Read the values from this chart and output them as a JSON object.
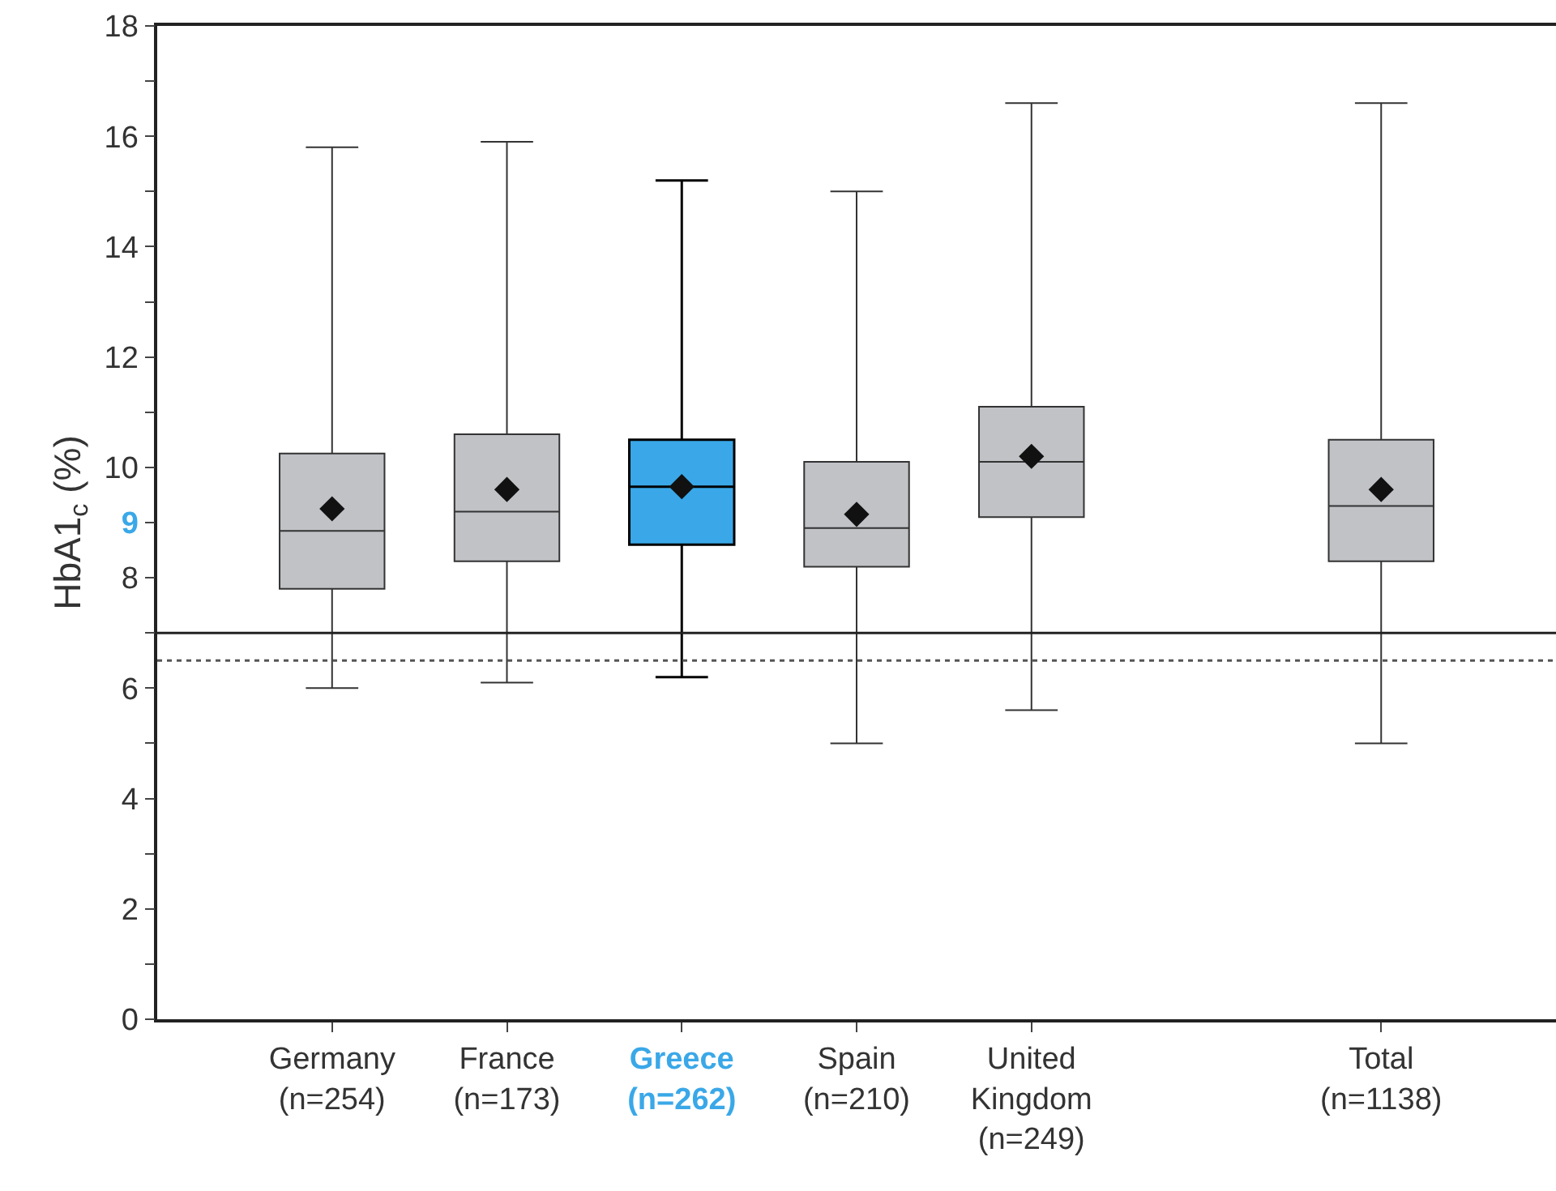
{
  "chart_data": {
    "type": "box",
    "ylabel": "HbA1$_{c}$ (%)",
    "categories": [
      "Germany\n(n=254)",
      "France\n(n=173)",
      "Greece\n(n=262)",
      "Spain\n(n=210)",
      "United\nKingdom\n(n=249)",
      null,
      "Total\n(n=1138)"
    ],
    "color": "#c0c2c6",
    "colors": [
      "#c0c2c6",
      "#c0c2c6",
      "#3aa8e8",
      "#c0c2c6",
      "#c0c2c6",
      null,
      "#c0c2c6"
    ],
    "boxes": [
      {
        "low": 6.0,
        "q1": 7.8,
        "median": 8.85,
        "q3": 10.25,
        "high": 15.8,
        "mean": 9.25
      },
      {
        "low": 6.1,
        "q1": 8.3,
        "median": 9.2,
        "q3": 10.6,
        "high": 15.9,
        "mean": 9.6
      },
      {
        "low": 6.2,
        "q1": 8.6,
        "median": 9.65,
        "q3": 10.5,
        "high": 15.2,
        "mean": 9.65
      },
      {
        "low": 5.0,
        "q1": 8.2,
        "median": 8.9,
        "q3": 10.1,
        "high": 15.0,
        "mean": 9.15
      },
      {
        "low": 5.6,
        "q1": 9.1,
        "median": 10.1,
        "q3": 11.1,
        "high": 16.6,
        "mean": 10.2
      },
      null,
      {
        "low": 5.0,
        "q1": 8.3,
        "median": 9.3,
        "q3": 10.5,
        "high": 16.6,
        "mean": 9.6
      }
    ],
    "ylim": [
      0,
      18
    ],
    "yticks": [
      0,
      {
        "value": 1,
        "label": null
      },
      2,
      {
        "value": 3,
        "label": null
      },
      4,
      {
        "value": 5,
        "label": null
      },
      6,
      {
        "value": 7,
        "label": null
      },
      8,
      {
        "value": 9,
        "label": "9"
      },
      10,
      {
        "value": 11,
        "label": null
      },
      12,
      {
        "value": 13,
        "label": null
      },
      14,
      {
        "value": 15,
        "label": null
      },
      16,
      {
        "value": 17,
        "label": null
      },
      18
    ],
    "ref_lines": [
      {
        "axis": "y",
        "value": 7,
        "color": "#222222",
        "line_style": "solid"
      },
      {
        "axis": "y",
        "value": 6.5,
        "color": "#555555",
        "line_style": "dotted"
      }
    ],
    "marker": "diamond"
  }
}
